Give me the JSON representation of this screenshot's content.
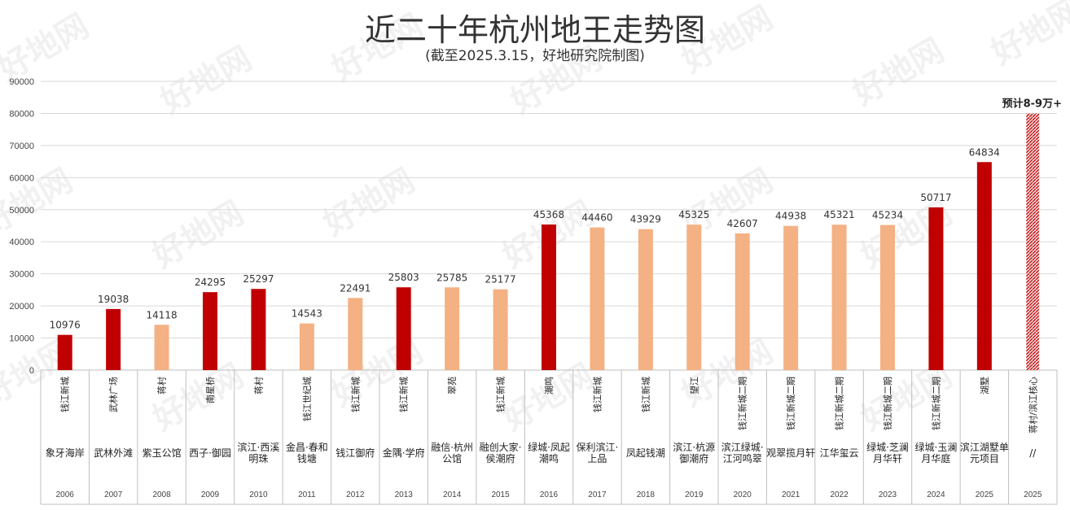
{
  "title": "近二十年杭州地王走势图",
  "subtitle": "(截至2025.3.15，好地研究院制图)",
  "watermark": "好地网",
  "colors": {
    "dark": "#c00000",
    "light": "#f4b183",
    "hatch": "#c00000",
    "grid": "#d9d9d9",
    "axis": "#bfbfbf"
  },
  "chart_data": {
    "type": "bar",
    "ylim": [
      0,
      90000
    ],
    "yticks": [
      0,
      10000,
      20000,
      30000,
      40000,
      50000,
      60000,
      70000,
      80000,
      90000
    ],
    "grid": true,
    "title": "近二十年杭州地王走势图",
    "xlabel": "",
    "ylabel": "",
    "categories": [
      {
        "year": "2006",
        "area": "钱江新城",
        "project": "象牙海岸",
        "value": 10976,
        "label": "10976",
        "style": "dark"
      },
      {
        "year": "2007",
        "area": "武林广场",
        "project": "武林外滩",
        "value": 19038,
        "label": "19038",
        "style": "dark"
      },
      {
        "year": "2008",
        "area": "蒋村",
        "project": "紫玉公馆",
        "value": 14118,
        "label": "14118",
        "style": "light"
      },
      {
        "year": "2009",
        "area": "南星桥",
        "project": "西子·御园",
        "value": 24295,
        "label": "24295",
        "style": "dark"
      },
      {
        "year": "2010",
        "area": "蒋村",
        "project": "滨江·西溪明珠",
        "value": 25297,
        "label": "25297",
        "style": "dark"
      },
      {
        "year": "2011",
        "area": "钱江世纪城",
        "project": "金昌·春和钱塘",
        "value": 14543,
        "label": "14543",
        "style": "light"
      },
      {
        "year": "2012",
        "area": "钱江新城",
        "project": "钱江御府",
        "value": 22491,
        "label": "22491",
        "style": "light"
      },
      {
        "year": "2013",
        "area": "钱江新城",
        "project": "金隅·学府",
        "value": 25803,
        "label": "25803",
        "style": "dark"
      },
      {
        "year": "2014",
        "area": "翠苑",
        "project": "融信·杭州公馆",
        "value": 25785,
        "label": "25785",
        "style": "light"
      },
      {
        "year": "2015",
        "area": "钱江新城",
        "project": "融创大家·侯潮府",
        "value": 25177,
        "label": "25177",
        "style": "light"
      },
      {
        "year": "2016",
        "area": "潮鸣",
        "project": "绿城·凤起潮鸣",
        "value": 45368,
        "label": "45368",
        "style": "dark"
      },
      {
        "year": "2017",
        "area": "钱江新城",
        "project": "保利滨江·上品",
        "value": 44460,
        "label": "44460",
        "style": "light"
      },
      {
        "year": "2018",
        "area": "钱江新城",
        "project": "凤起钱潮",
        "value": 43929,
        "label": "43929",
        "style": "light"
      },
      {
        "year": "2019",
        "area": "望江",
        "project": "滨江·杭源御潮府",
        "value": 45325,
        "label": "45325",
        "style": "light"
      },
      {
        "year": "2020",
        "area": "钱江新城二期",
        "project": "滨江绿城·江河鸣翠",
        "value": 42607,
        "label": "42607",
        "style": "light"
      },
      {
        "year": "2021",
        "area": "钱江新城二期",
        "project": "观翠揽月轩",
        "value": 44938,
        "label": "44938",
        "style": "light"
      },
      {
        "year": "2022",
        "area": "钱江新城二期",
        "project": "江华玺云",
        "value": 45321,
        "label": "45321",
        "style": "light"
      },
      {
        "year": "2023",
        "area": "钱江新城二期",
        "project": "绿城·芝澜月华轩",
        "value": 45234,
        "label": "45234",
        "style": "light"
      },
      {
        "year": "2024",
        "area": "钱江新城二期",
        "project": "绿城·玉澜月华庭",
        "value": 50717,
        "label": "50717",
        "style": "dark"
      },
      {
        "year": "2025",
        "area": "湖墅",
        "project": "滨江湖墅单元项目",
        "value": 64834,
        "label": "64834",
        "style": "dark"
      },
      {
        "year": "2025",
        "area": "蒋村/滨江核心",
        "project": "//",
        "value": 80000,
        "label": "预计8-9万+",
        "style": "hatch"
      }
    ]
  }
}
